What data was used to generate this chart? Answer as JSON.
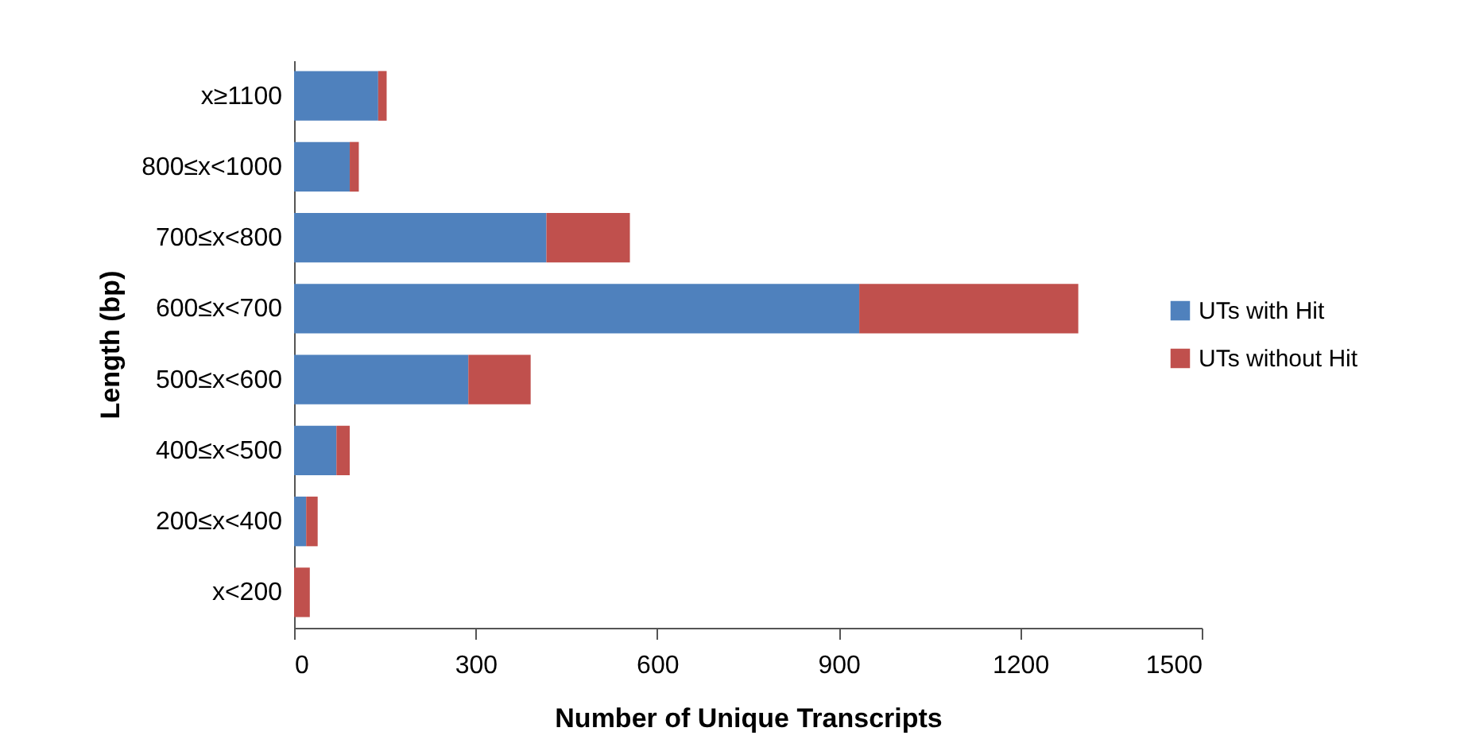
{
  "chart_data": {
    "type": "bar",
    "orientation": "horizontal",
    "stacked": true,
    "xlabel": "Number of  Unique Transcripts",
    "ylabel": "Length (bp)",
    "categories": [
      "x≥1100",
      "800≤x<1000",
      "700≤x<800",
      "600≤x<700",
      "500≤x<600",
      "400≤x<500",
      "200≤x<400",
      "x<200"
    ],
    "series": [
      {
        "name": "UTs with Hit",
        "color": "#4f81bd",
        "values": [
          139,
          92,
          417,
          934,
          288,
          70,
          20,
          0
        ]
      },
      {
        "name": "UTs without Hit",
        "color": "#c0504d",
        "values": [
          14,
          15,
          138,
          362,
          103,
          22,
          19,
          26
        ]
      }
    ],
    "xlim": [
      0,
      1500
    ],
    "xticks": [
      0,
      300,
      600,
      900,
      1200,
      1500
    ],
    "grid": false,
    "legend": "right"
  }
}
